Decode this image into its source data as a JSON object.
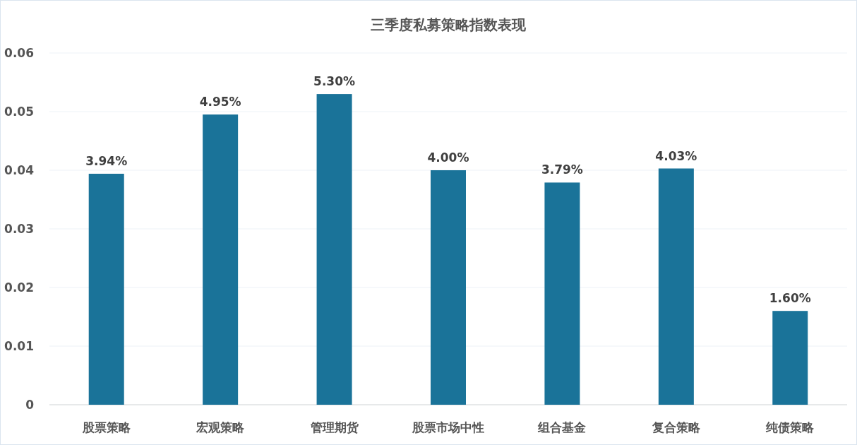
{
  "chart_data": {
    "type": "bar",
    "title": "三季度私募策略指数表现",
    "categories": [
      "股票策略",
      "宏观策略",
      "管理期货",
      "股票市场中性",
      "组合基金",
      "复合策略",
      "纯债策略"
    ],
    "values": [
      0.0394,
      0.0495,
      0.053,
      0.04,
      0.0379,
      0.0403,
      0.016
    ],
    "value_labels": [
      "3.94%",
      "4.95%",
      "5.30%",
      "4.00%",
      "3.79%",
      "4.03%",
      "1.60%"
    ],
    "color": "#1a7399",
    "ylim": [
      0,
      0.06
    ],
    "yticks": [
      {
        "value": 0,
        "label": "0"
      },
      0.01,
      0.02,
      0.03,
      0.04,
      0.05,
      0.06
    ],
    "grid": "y"
  }
}
